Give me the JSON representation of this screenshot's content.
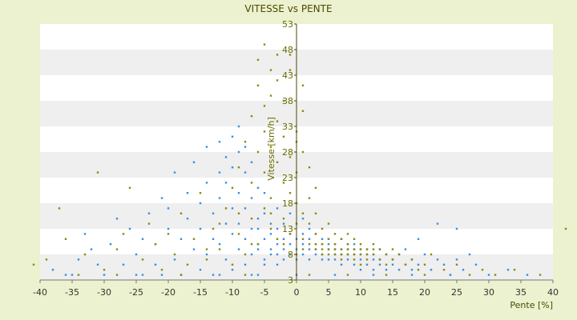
{
  "chart_data": {
    "type": "scatter",
    "title": "VITESSE vs PENTE",
    "xlabel": "Pente [%]",
    "ylabel": "Vitesse [km/h]",
    "xlim": [
      -40,
      40
    ],
    "ylim": [
      3,
      53
    ],
    "x_ticks": [
      "-40",
      "-35",
      "-30",
      "-25",
      "-20",
      "-15",
      "-10",
      "-5",
      "0",
      "5",
      "10",
      "15",
      "20",
      "25",
      "30",
      "35",
      "40"
    ],
    "y_ticks": [
      "3",
      "8",
      "13",
      "18",
      "23",
      "28",
      "33",
      "38",
      "43",
      "48",
      "53"
    ],
    "grid": "horizontal bands",
    "legend": "none",
    "colors": {
      "series_1": "#3a8fe0",
      "series_2": "#8a8a10",
      "band": "#efefef",
      "background": "#ecf2cf"
    },
    "series": [
      {
        "values": [
          [
            -38,
            5
          ],
          [
            -35,
            4
          ],
          [
            -34,
            7
          ],
          [
            -33,
            12
          ],
          [
            -32,
            9
          ],
          [
            -31,
            6
          ],
          [
            -30,
            4
          ],
          [
            -29,
            10
          ],
          [
            -28,
            15
          ],
          [
            -27,
            6
          ],
          [
            -26,
            13
          ],
          [
            -25,
            8
          ],
          [
            -25,
            4
          ],
          [
            -24,
            11
          ],
          [
            -23,
            16
          ],
          [
            -22,
            6
          ],
          [
            -22,
            10
          ],
          [
            -21,
            4
          ],
          [
            -21,
            19
          ],
          [
            -20,
            13
          ],
          [
            -20,
            17
          ],
          [
            -19,
            7
          ],
          [
            -19,
            24
          ],
          [
            -18,
            11
          ],
          [
            -18,
            4
          ],
          [
            -17,
            15
          ],
          [
            -17,
            20
          ],
          [
            -16,
            9
          ],
          [
            -16,
            26
          ],
          [
            -15,
            13
          ],
          [
            -15,
            5
          ],
          [
            -15,
            18
          ],
          [
            -14,
            22
          ],
          [
            -14,
            8
          ],
          [
            -14,
            29
          ],
          [
            -13,
            11
          ],
          [
            -13,
            16
          ],
          [
            -13,
            4
          ],
          [
            -12,
            24
          ],
          [
            -12,
            10
          ],
          [
            -12,
            19
          ],
          [
            -12,
            30
          ],
          [
            -11,
            14
          ],
          [
            -11,
            7
          ],
          [
            -11,
            27
          ],
          [
            -11,
            22
          ],
          [
            -10,
            12
          ],
          [
            -10,
            17
          ],
          [
            -10,
            5
          ],
          [
            -10,
            31
          ],
          [
            -10,
            25
          ],
          [
            -9,
            9
          ],
          [
            -9,
            14
          ],
          [
            -9,
            20
          ],
          [
            -9,
            28
          ],
          [
            -9,
            33
          ],
          [
            -8,
            11
          ],
          [
            -8,
            6
          ],
          [
            -8,
            17
          ],
          [
            -8,
            24
          ],
          [
            -8,
            29
          ],
          [
            -7,
            8
          ],
          [
            -7,
            13
          ],
          [
            -7,
            19
          ],
          [
            -7,
            26
          ],
          [
            -7,
            4
          ],
          [
            -6,
            10
          ],
          [
            -6,
            15
          ],
          [
            -6,
            21
          ],
          [
            -6,
            9
          ],
          [
            -6,
            13
          ],
          [
            -5,
            7
          ],
          [
            -5,
            11
          ],
          [
            -5,
            16
          ],
          [
            -5,
            20
          ],
          [
            -5,
            6
          ],
          [
            -4,
            9
          ],
          [
            -4,
            12
          ],
          [
            -4,
            14
          ],
          [
            -4,
            8
          ],
          [
            -3,
            10
          ],
          [
            -3,
            6
          ],
          [
            -3,
            13
          ],
          [
            -3,
            8
          ],
          [
            -2,
            9
          ],
          [
            -2,
            11
          ],
          [
            -2,
            7
          ],
          [
            -1,
            10
          ],
          [
            -1,
            8
          ],
          [
            -1,
            12
          ],
          [
            0,
            9
          ],
          [
            0,
            7
          ],
          [
            0,
            11
          ],
          [
            1,
            10
          ],
          [
            1,
            8
          ],
          [
            1,
            12
          ],
          [
            2,
            9
          ],
          [
            2,
            11
          ],
          [
            2,
            7
          ],
          [
            3,
            10
          ],
          [
            3,
            8
          ],
          [
            3,
            9
          ],
          [
            4,
            11
          ],
          [
            4,
            7
          ],
          [
            4,
            10
          ],
          [
            4,
            8
          ],
          [
            5,
            9
          ],
          [
            5,
            11
          ],
          [
            5,
            7
          ],
          [
            5,
            10
          ],
          [
            6,
            9
          ],
          [
            6,
            8
          ],
          [
            6,
            10
          ],
          [
            6,
            7
          ],
          [
            7,
            9
          ],
          [
            7,
            11
          ],
          [
            7,
            8
          ],
          [
            7,
            6
          ],
          [
            8,
            10
          ],
          [
            8,
            8
          ],
          [
            8,
            7
          ],
          [
            8,
            9
          ],
          [
            9,
            8
          ],
          [
            9,
            10
          ],
          [
            9,
            6
          ],
          [
            9,
            9
          ],
          [
            10,
            8
          ],
          [
            10,
            7
          ],
          [
            10,
            9
          ],
          [
            10,
            5
          ],
          [
            11,
            8
          ],
          [
            11,
            6
          ],
          [
            11,
            9
          ],
          [
            12,
            7
          ],
          [
            12,
            8
          ],
          [
            12,
            5
          ],
          [
            13,
            7
          ],
          [
            13,
            9
          ],
          [
            13,
            6
          ],
          [
            14,
            8
          ],
          [
            14,
            5
          ],
          [
            15,
            7
          ],
          [
            15,
            6
          ],
          [
            16,
            8
          ],
          [
            16,
            5
          ],
          [
            17,
            6
          ],
          [
            17,
            9
          ],
          [
            18,
            7
          ],
          [
            18,
            5
          ],
          [
            19,
            6
          ],
          [
            20,
            8
          ],
          [
            21,
            5
          ],
          [
            22,
            7
          ],
          [
            23,
            6
          ],
          [
            24,
            4
          ],
          [
            25,
            7
          ],
          [
            26,
            5
          ],
          [
            28,
            6
          ],
          [
            30,
            4
          ],
          [
            33,
            5
          ],
          [
            36,
            4
          ],
          [
            -36,
            4
          ],
          [
            -12,
            4
          ],
          [
            -6,
            4
          ],
          [
            0,
            4
          ],
          [
            6,
            4
          ],
          [
            12,
            4
          ],
          [
            18,
            4
          ],
          [
            24,
            4
          ],
          [
            -24,
            4
          ],
          [
            -3,
            17
          ],
          [
            -2,
            14
          ],
          [
            1,
            15
          ],
          [
            2,
            13
          ],
          [
            3,
            12
          ],
          [
            -1,
            16
          ],
          [
            22,
            14
          ],
          [
            25,
            13
          ],
          [
            19,
            11
          ],
          [
            27,
            8
          ]
        ]
      },
      {
        "values": [
          [
            -41,
            6
          ],
          [
            -39,
            7
          ],
          [
            -37,
            17
          ],
          [
            -36,
            11
          ],
          [
            -33,
            8
          ],
          [
            -31,
            24
          ],
          [
            -30,
            5
          ],
          [
            -28,
            9
          ],
          [
            -27,
            12
          ],
          [
            -26,
            21
          ],
          [
            -24,
            7
          ],
          [
            -23,
            14
          ],
          [
            -22,
            10
          ],
          [
            -21,
            5
          ],
          [
            -20,
            12
          ],
          [
            -19,
            8
          ],
          [
            -18,
            16
          ],
          [
            -17,
            6
          ],
          [
            -16,
            11
          ],
          [
            -15,
            20
          ],
          [
            -14,
            7
          ],
          [
            -13,
            13
          ],
          [
            -12,
            9
          ],
          [
            -11,
            17
          ],
          [
            -10,
            6
          ],
          [
            -10,
            21
          ],
          [
            -9,
            12
          ],
          [
            -9,
            25
          ],
          [
            -8,
            8
          ],
          [
            -8,
            30
          ],
          [
            -7,
            15
          ],
          [
            -7,
            35
          ],
          [
            -7,
            22
          ],
          [
            -6,
            10
          ],
          [
            -6,
            28
          ],
          [
            -6,
            41
          ],
          [
            -6,
            46
          ],
          [
            -5,
            17
          ],
          [
            -5,
            32
          ],
          [
            -5,
            49
          ],
          [
            -5,
            37
          ],
          [
            -5,
            24
          ],
          [
            -4,
            13
          ],
          [
            -4,
            29
          ],
          [
            -4,
            44
          ],
          [
            -4,
            39
          ],
          [
            -4,
            19
          ],
          [
            -3,
            11
          ],
          [
            -3,
            26
          ],
          [
            -3,
            34
          ],
          [
            -3,
            47
          ],
          [
            -3,
            42
          ],
          [
            -2,
            15
          ],
          [
            -2,
            22
          ],
          [
            -2,
            31
          ],
          [
            -2,
            38
          ],
          [
            -1,
            12
          ],
          [
            -1,
            20
          ],
          [
            -1,
            27
          ],
          [
            -1,
            44
          ],
          [
            -1,
            47
          ],
          [
            0,
            14
          ],
          [
            0,
            18
          ],
          [
            0,
            24
          ],
          [
            0,
            30
          ],
          [
            0,
            32
          ],
          [
            1,
            11
          ],
          [
            1,
            16
          ],
          [
            1,
            28
          ],
          [
            1,
            41
          ],
          [
            1,
            36
          ],
          [
            2,
            10
          ],
          [
            2,
            14
          ],
          [
            2,
            19
          ],
          [
            2,
            25
          ],
          [
            3,
            9
          ],
          [
            3,
            12
          ],
          [
            3,
            16
          ],
          [
            3,
            21
          ],
          [
            4,
            10
          ],
          [
            4,
            13
          ],
          [
            4,
            8
          ],
          [
            5,
            11
          ],
          [
            5,
            9
          ],
          [
            5,
            14
          ],
          [
            6,
            10
          ],
          [
            6,
            8
          ],
          [
            6,
            12
          ],
          [
            7,
            9
          ],
          [
            7,
            11
          ],
          [
            7,
            7
          ],
          [
            8,
            10
          ],
          [
            8,
            8
          ],
          [
            8,
            12
          ],
          [
            9,
            9
          ],
          [
            9,
            7
          ],
          [
            9,
            11
          ],
          [
            10,
            8
          ],
          [
            10,
            10
          ],
          [
            10,
            6
          ],
          [
            11,
            9
          ],
          [
            11,
            7
          ],
          [
            12,
            8
          ],
          [
            12,
            10
          ],
          [
            13,
            7
          ],
          [
            13,
            9
          ],
          [
            14,
            8
          ],
          [
            14,
            6
          ],
          [
            15,
            7
          ],
          [
            16,
            8
          ],
          [
            17,
            6
          ],
          [
            18,
            7
          ],
          [
            19,
            5
          ],
          [
            20,
            6
          ],
          [
            21,
            8
          ],
          [
            23,
            5
          ],
          [
            25,
            6
          ],
          [
            27,
            4
          ],
          [
            29,
            5
          ],
          [
            31,
            4
          ],
          [
            34,
            5
          ],
          [
            38,
            4
          ],
          [
            42,
            13
          ],
          [
            -34,
            4
          ],
          [
            -28,
            4
          ],
          [
            -18,
            4
          ],
          [
            -8,
            4
          ],
          [
            2,
            4
          ],
          [
            8,
            4
          ],
          [
            14,
            4
          ],
          [
            20,
            4
          ],
          [
            -14,
            9
          ],
          [
            -12,
            14
          ],
          [
            -9,
            16
          ],
          [
            -7,
            10
          ],
          [
            -4,
            16
          ],
          [
            -2,
            10
          ],
          [
            0,
            8
          ],
          [
            1,
            9
          ],
          [
            3,
            10
          ],
          [
            4,
            9
          ],
          [
            5,
            8
          ],
          [
            6,
            9
          ],
          [
            7,
            8
          ],
          [
            8,
            9
          ],
          [
            9,
            8
          ],
          [
            10,
            9
          ],
          [
            11,
            8
          ],
          [
            12,
            9
          ],
          [
            15,
            9
          ]
        ]
      }
    ]
  }
}
